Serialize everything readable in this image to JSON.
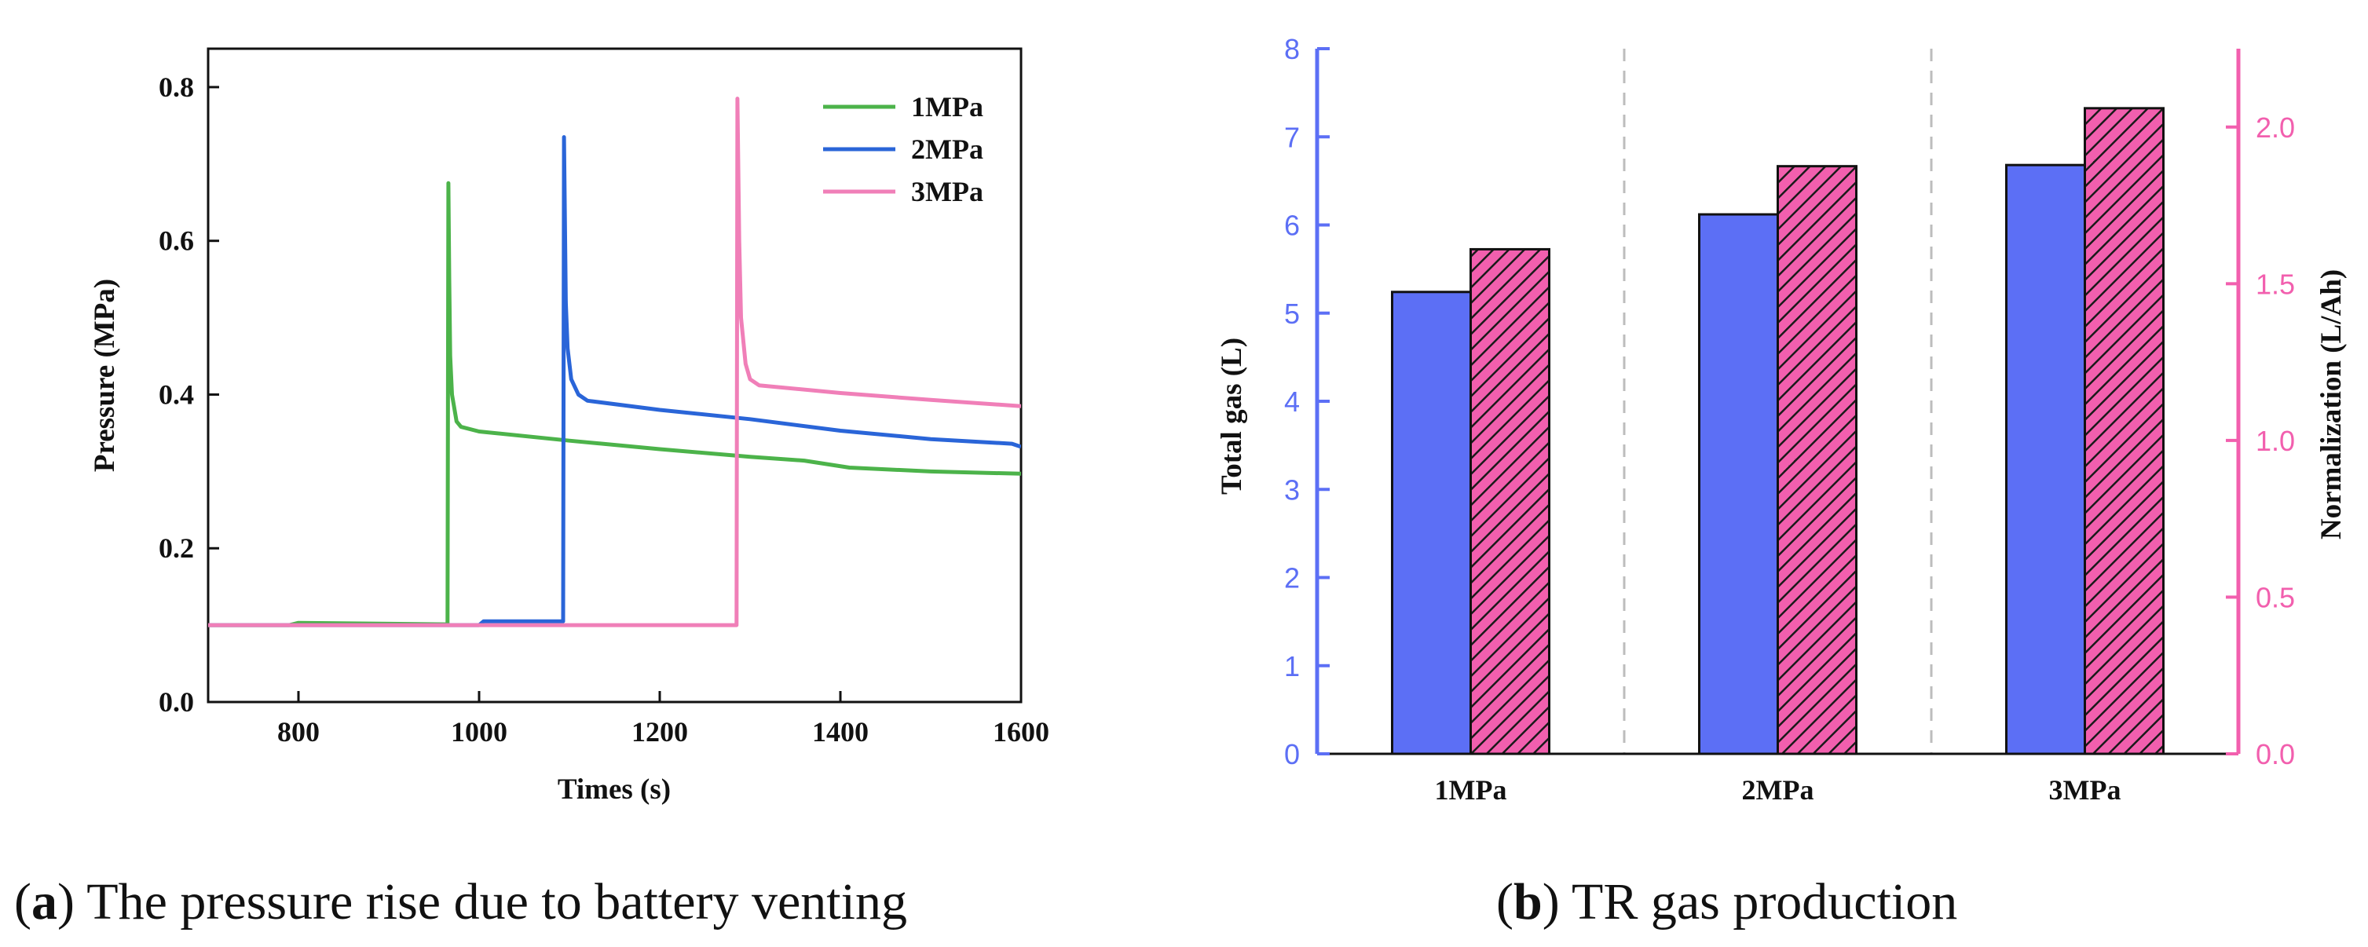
{
  "chart_data": [
    {
      "type": "line",
      "panel": "a",
      "xlabel": "Times (s)",
      "ylabel": "Pressure (MPa)",
      "xlim": [
        700,
        1600
      ],
      "ylim": [
        0.0,
        0.85
      ],
      "xticks": [
        800,
        1000,
        1200,
        1400,
        1600
      ],
      "yticks": [
        0.0,
        0.2,
        0.4,
        0.6,
        0.8
      ],
      "xtick_labels": [
        "800",
        "1000",
        "1200",
        "1400",
        "1600"
      ],
      "ytick_labels": [
        "0.0",
        "0.2",
        "0.4",
        "0.6",
        "0.8"
      ],
      "legend_position": "top-right",
      "series": [
        {
          "name": "1MPa",
          "color": "#4cb34a",
          "x": [
            700,
            790,
            800,
            965,
            966,
            967,
            968,
            970,
            975,
            980,
            1000,
            1100,
            1200,
            1300,
            1360,
            1410,
            1500,
            1600
          ],
          "y": [
            0.1,
            0.1,
            0.103,
            0.101,
            0.675,
            0.55,
            0.45,
            0.4,
            0.365,
            0.358,
            0.352,
            0.34,
            0.329,
            0.319,
            0.314,
            0.305,
            0.3,
            0.297
          ]
        },
        {
          "name": "2MPa",
          "color": "#2a65d8",
          "x": [
            700,
            1000,
            1005,
            1093,
            1094,
            1096,
            1098,
            1102,
            1110,
            1120,
            1200,
            1300,
            1400,
            1500,
            1590,
            1600
          ],
          "y": [
            0.1,
            0.1,
            0.105,
            0.105,
            0.735,
            0.52,
            0.46,
            0.42,
            0.4,
            0.392,
            0.38,
            0.368,
            0.353,
            0.342,
            0.336,
            0.332
          ]
        },
        {
          "name": "3MPa",
          "color": "#f07fb8",
          "x": [
            700,
            1285,
            1286,
            1288,
            1290,
            1295,
            1300,
            1310,
            1400,
            1500,
            1600
          ],
          "y": [
            0.1,
            0.1,
            0.785,
            0.6,
            0.5,
            0.44,
            0.42,
            0.412,
            0.402,
            0.393,
            0.385
          ]
        }
      ],
      "caption_letter": "a",
      "caption_text": "The pressure rise due to battery venting"
    },
    {
      "type": "bar",
      "panel": "b",
      "categories": [
        "1MPa",
        "2MPa",
        "3MPa"
      ],
      "ylabel": "Total gas (L)",
      "ylim": [
        0,
        8
      ],
      "yticks": [
        0,
        1,
        2,
        3,
        4,
        5,
        6,
        7,
        8
      ],
      "ytick_labels": [
        "0",
        "1",
        "2",
        "3",
        "4",
        "5",
        "6",
        "7",
        "8"
      ],
      "y2label": "Normalization (L/Ah)",
      "y2lim": [
        0.0,
        2.25
      ],
      "y2ticks": [
        0.0,
        0.5,
        1.0,
        1.5,
        2.0
      ],
      "y2tick_labels": [
        "0.0",
        "0.5",
        "1.0",
        "1.5",
        "2.0"
      ],
      "left_axis_color": "#5c6ff5",
      "right_axis_color": "#f25fae",
      "series": [
        {
          "name": "Total gas (L)",
          "axis": "left",
          "color": "#5c6ff5",
          "hatch": false,
          "values": [
            5.24,
            6.12,
            6.68
          ]
        },
        {
          "name": "Normalization (L/Ah)",
          "axis": "right",
          "color": "#f25fae",
          "hatch": true,
          "values": [
            1.61,
            1.875,
            2.06
          ]
        }
      ],
      "caption_letter": "b",
      "caption_text": "TR gas production"
    }
  ]
}
